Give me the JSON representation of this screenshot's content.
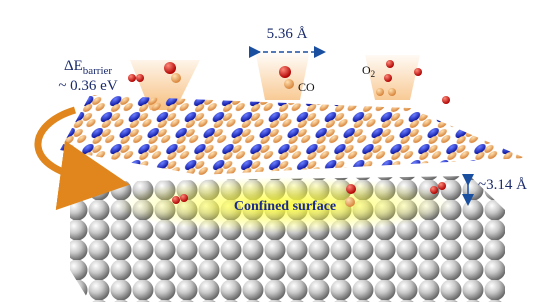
{
  "labels": {
    "barrier": {
      "main": "ΔE",
      "sub": "barrier"
    },
    "energy": "~ 0.36 eV",
    "spacing": "5.36 Å",
    "co": "CO",
    "o2": {
      "main": "O",
      "sub": "2"
    },
    "surface": "Confined surface",
    "gap": "~3.14 Å"
  }
}
